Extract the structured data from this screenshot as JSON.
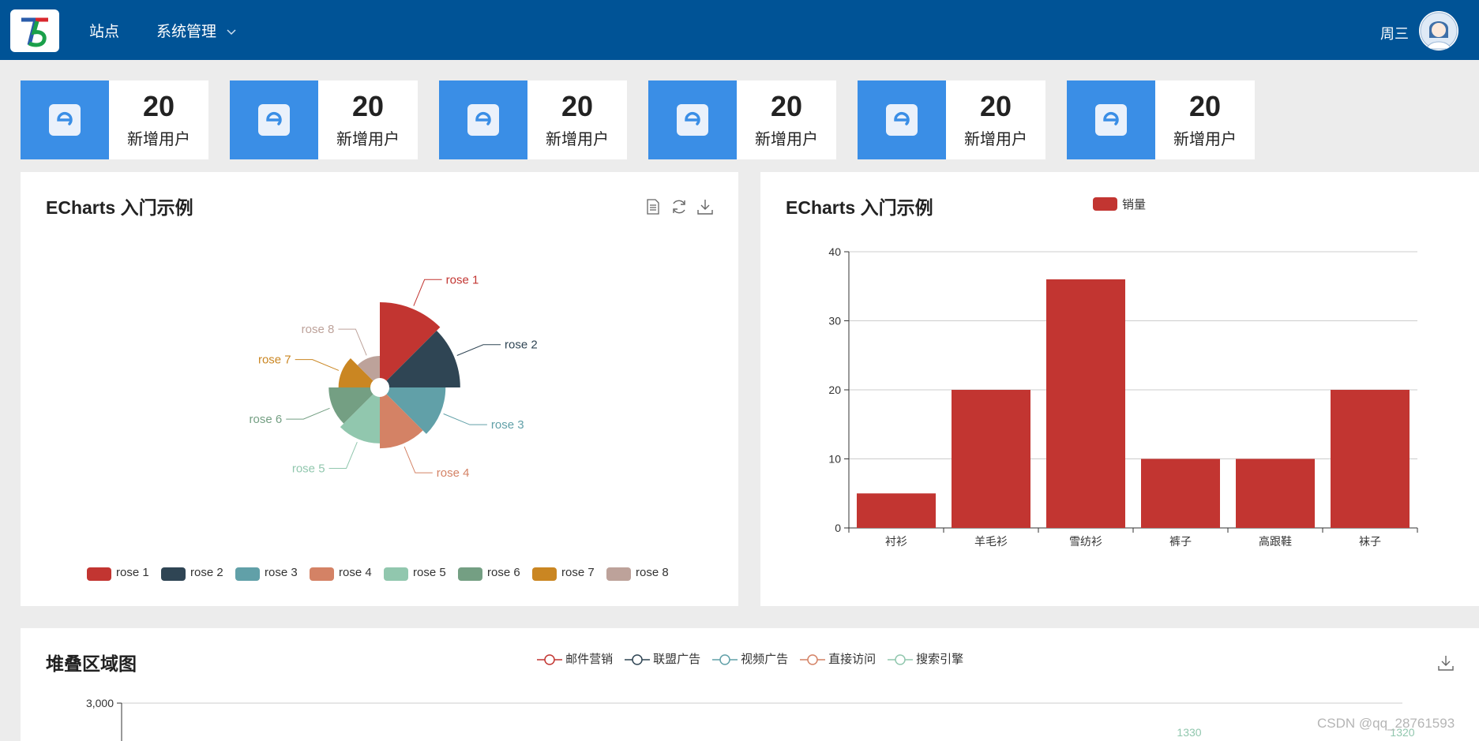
{
  "header": {
    "nav": [
      "站点",
      "系统管理"
    ],
    "user_name": "周三",
    "colors": {
      "bg": "#005396",
      "text": "#ffffff"
    }
  },
  "stats": [
    {
      "value": "20",
      "label": "新增用户"
    },
    {
      "value": "20",
      "label": "新增用户"
    },
    {
      "value": "20",
      "label": "新增用户"
    },
    {
      "value": "20",
      "label": "新增用户"
    },
    {
      "value": "20",
      "label": "新增用户"
    },
    {
      "value": "20",
      "label": "新增用户"
    }
  ],
  "stat_icon": "e-logo-icon",
  "pie_panel": {
    "title": "ECharts 入门示例",
    "toolbox": [
      "data-view-icon",
      "restore-icon",
      "save-image-icon"
    ]
  },
  "bar_panel": {
    "title": "ECharts 入门示例"
  },
  "area_panel": {
    "title": "堆叠区域图",
    "toolbox": [
      "save-image-icon"
    ]
  },
  "watermark": "CSDN @qq_28761593",
  "chart_data": [
    {
      "type": "pie",
      "rose_type": "radius",
      "labels": [
        "rose 1",
        "rose 2",
        "rose 3",
        "rose 4",
        "rose 5",
        "rose 6",
        "rose 7",
        "rose 8"
      ],
      "values": [
        40,
        38,
        32,
        30,
        28,
        26,
        22,
        18
      ],
      "colors": [
        "#c23531",
        "#2f4554",
        "#61a0a8",
        "#d48265",
        "#91c7ae",
        "#749f83",
        "#ca8622",
        "#bda29a"
      ],
      "legend": "bottom"
    },
    {
      "type": "bar",
      "categories": [
        "衬衫",
        "羊毛衫",
        "雪纺衫",
        "裤子",
        "高跟鞋",
        "袜子"
      ],
      "series": [
        {
          "name": "销量",
          "values": [
            5,
            20,
            36,
            10,
            10,
            20
          ],
          "color": "#c23531"
        }
      ],
      "ylim": [
        0,
        40
      ],
      "yticks": [
        0,
        10,
        20,
        30,
        40
      ],
      "grid": true,
      "legend": "top-center"
    },
    {
      "type": "area",
      "stacked": true,
      "series": [
        {
          "name": "邮件营销",
          "color": "#c23531"
        },
        {
          "name": "联盟广告",
          "color": "#2f4554"
        },
        {
          "name": "视频广告",
          "color": "#61a0a8"
        },
        {
          "name": "直接访问",
          "color": "#d48265"
        },
        {
          "name": "搜索引擎",
          "color": "#91c7ae"
        }
      ],
      "ylim_top_tick": "3,000",
      "visible_data_labels": [
        "1330",
        "1320"
      ],
      "legend": "top-center"
    }
  ]
}
